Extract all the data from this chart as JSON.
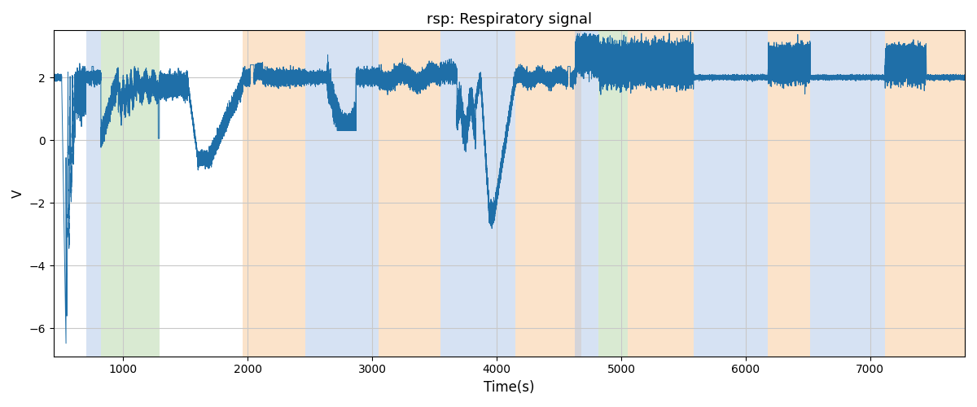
{
  "title": "rsp: Respiratory signal",
  "xlabel": "Time(s)",
  "ylabel": "V",
  "xlim": [
    440,
    7760
  ],
  "ylim": [
    -6.9,
    3.5
  ],
  "signal_color": "#1f6fa8",
  "signal_linewidth": 0.7,
  "background_color": "#ffffff",
  "grid_color": "#c8c8c8",
  "bands": [
    {
      "xmin": 700,
      "xmax": 820,
      "color": "#aec6e8",
      "alpha": 0.5
    },
    {
      "xmin": 820,
      "xmax": 1290,
      "color": "#b5d6a7",
      "alpha": 0.5
    },
    {
      "xmin": 1960,
      "xmax": 2460,
      "color": "#f9c897",
      "alpha": 0.5
    },
    {
      "xmin": 2460,
      "xmax": 3050,
      "color": "#aec6e8",
      "alpha": 0.5
    },
    {
      "xmin": 3050,
      "xmax": 3550,
      "color": "#f9c897",
      "alpha": 0.5
    },
    {
      "xmin": 3550,
      "xmax": 4150,
      "color": "#aec6e8",
      "alpha": 0.5
    },
    {
      "xmin": 4150,
      "xmax": 4680,
      "color": "#f9c897",
      "alpha": 0.5
    },
    {
      "xmin": 4630,
      "xmax": 4820,
      "color": "#aec6e8",
      "alpha": 0.5
    },
    {
      "xmin": 4820,
      "xmax": 5050,
      "color": "#b5d6a7",
      "alpha": 0.5
    },
    {
      "xmin": 5050,
      "xmax": 5580,
      "color": "#f9c897",
      "alpha": 0.5
    },
    {
      "xmin": 5580,
      "xmax": 6180,
      "color": "#aec6e8",
      "alpha": 0.5
    },
    {
      "xmin": 6180,
      "xmax": 6520,
      "color": "#f9c897",
      "alpha": 0.5
    },
    {
      "xmin": 6520,
      "xmax": 7120,
      "color": "#aec6e8",
      "alpha": 0.5
    },
    {
      "xmin": 7120,
      "xmax": 7760,
      "color": "#f9c897",
      "alpha": 0.5
    }
  ],
  "xticks": [
    1000,
    2000,
    3000,
    4000,
    5000,
    6000,
    7000
  ],
  "yticks": [
    -6,
    -4,
    -2,
    0,
    2
  ],
  "seed": 123
}
